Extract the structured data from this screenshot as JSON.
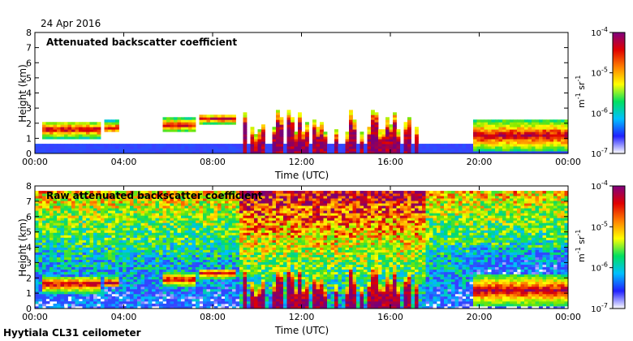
{
  "figure": {
    "date": "24 Apr 2016",
    "footer": "Hyytiala CL31 ceilometer"
  },
  "chart_data": [
    {
      "type": "heatmap",
      "title": "Attenuated backscatter coefficient",
      "xlabel": "Time (UTC)",
      "ylabel": "Height (km)",
      "xticks": [
        "00:00",
        "04:00",
        "08:00",
        "12:00",
        "16:00",
        "20:00",
        "00:00"
      ],
      "xlim_hours": [
        0,
        24
      ],
      "yticks": [
        "0",
        "1",
        "2",
        "3",
        "4",
        "5",
        "6",
        "7",
        "8"
      ],
      "ylim_km": [
        0,
        8
      ],
      "colorbar": {
        "scale": "log",
        "range": [
          1e-07,
          0.0001
        ],
        "tick_mantissa": [
          "10",
          "10",
          "10",
          "10"
        ],
        "tick_exponents": [
          "-7",
          "-6",
          "-5",
          "-4"
        ],
        "unit_base": [
          "m",
          "sr"
        ],
        "unit_exponents": [
          "-1",
          "-1"
        ],
        "colors": [
          "#ffffff",
          "#2020ff",
          "#00c0ff",
          "#00e060",
          "#ffff00",
          "#ff8000",
          "#e00000",
          "#800080"
        ]
      },
      "features": [
        {
          "kind": "background_noise_band",
          "height_km": [
            0,
            0.6
          ],
          "hours": [
            0,
            24
          ]
        },
        {
          "kind": "aerosol_layer",
          "hours": [
            0.3,
            3.0
          ],
          "height_km": [
            0.9,
            2.0
          ],
          "peak_height_km": 1.6
        },
        {
          "kind": "aerosol_layer",
          "hours": [
            3.2,
            3.8
          ],
          "height_km": [
            1.4,
            2.2
          ],
          "peak_height_km": 1.7
        },
        {
          "kind": "aerosol_layer",
          "hours": [
            5.8,
            7.3
          ],
          "height_km": [
            1.5,
            2.4
          ],
          "peak_height_km": 1.9
        },
        {
          "kind": "aerosol_layer",
          "hours": [
            7.4,
            9.0
          ],
          "height_km": [
            1.9,
            2.6
          ],
          "peak_height_km": 2.3
        },
        {
          "kind": "cloud_patches",
          "hours": [
            9.2,
            17.6
          ],
          "height_km": [
            0,
            2.9
          ]
        },
        {
          "kind": "aerosol_layer",
          "hours": [
            19.8,
            24.0
          ],
          "height_km": [
            0.2,
            2.3
          ],
          "peak_height_km": 1.2
        }
      ]
    },
    {
      "type": "heatmap",
      "title": "Raw attenuated backscatter coefficient",
      "xlabel": "Time (UTC)",
      "ylabel": "Height (km)",
      "xticks": [
        "00:00",
        "04:00",
        "08:00",
        "12:00",
        "16:00",
        "20:00",
        "00:00"
      ],
      "xlim_hours": [
        0,
        24
      ],
      "yticks": [
        "0",
        "1",
        "2",
        "3",
        "4",
        "5",
        "6",
        "7",
        "8"
      ],
      "ylim_km": [
        0,
        8
      ],
      "colorbar": {
        "scale": "log",
        "range": [
          1e-07,
          0.0001
        ],
        "tick_mantissa": [
          "10",
          "10",
          "10",
          "10"
        ],
        "tick_exponents": [
          "-7",
          "-6",
          "-5",
          "-4"
        ],
        "unit_base": [
          "m",
          "sr"
        ],
        "unit_exponents": [
          "-1",
          "-1"
        ],
        "colors": [
          "#ffffff",
          "#2020ff",
          "#00c0ff",
          "#00e060",
          "#ffff00",
          "#ff8000",
          "#e00000",
          "#800080"
        ]
      },
      "data_top_km": 7.7,
      "features": [
        {
          "kind": "noise_field",
          "hours": [
            0,
            24
          ],
          "height_km": [
            0,
            7.7
          ]
        },
        {
          "kind": "noise_maximum",
          "hours": [
            9.2,
            17.6
          ]
        },
        {
          "kind": "aerosol_layer",
          "hours": [
            0.3,
            3.0
          ],
          "height_km": [
            0.9,
            2.0
          ],
          "peak_height_km": 1.6
        },
        {
          "kind": "aerosol_layer",
          "hours": [
            3.2,
            3.8
          ],
          "height_km": [
            1.4,
            2.2
          ],
          "peak_height_km": 1.7
        },
        {
          "kind": "aerosol_layer",
          "hours": [
            5.8,
            7.3
          ],
          "height_km": [
            1.5,
            2.4
          ],
          "peak_height_km": 1.9
        },
        {
          "kind": "aerosol_layer",
          "hours": [
            7.4,
            9.0
          ],
          "height_km": [
            1.9,
            2.6
          ],
          "peak_height_km": 2.3
        },
        {
          "kind": "cloud_patches",
          "hours": [
            9.2,
            17.6
          ],
          "height_km": [
            0,
            2.9
          ]
        },
        {
          "kind": "aerosol_layer",
          "hours": [
            19.8,
            24.0
          ],
          "height_km": [
            0.2,
            2.3
          ],
          "peak_height_km": 1.2
        }
      ]
    }
  ]
}
